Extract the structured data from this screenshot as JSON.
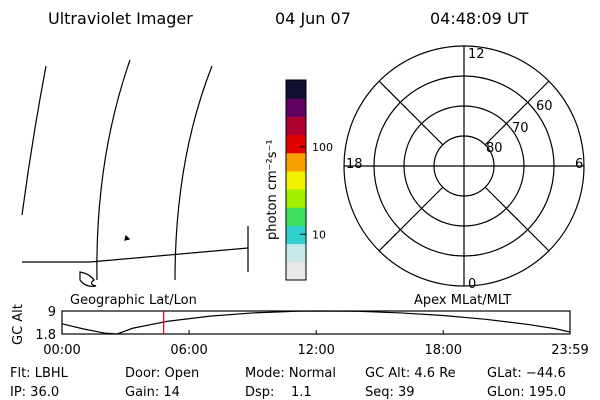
{
  "header": {
    "title": "Ultraviolet Imager",
    "date": "04 Jun 07",
    "time": "04:48:09 UT"
  },
  "colorbar": {
    "label": "photon cm⁻²s⁻¹",
    "lim": [
      3,
      580
    ],
    "ticks": [
      10,
      100
    ],
    "log": true
  },
  "polar": {
    "title": "Apex MLat/MLT",
    "mlt_labels": [
      "12",
      "6",
      "0",
      "18"
    ],
    "lat_labels": [
      "80",
      "70",
      "60"
    ]
  },
  "map": {
    "title": "Geographic Lat/Lon"
  },
  "altitude_plot": {
    "ylabel": "GC Alt",
    "ylim": [
      1.8,
      9.0
    ],
    "yticks": [
      1.8,
      9.0
    ],
    "xlim": [
      0,
      1439
    ],
    "xticks": [
      {
        "value": 0,
        "label": "00:00"
      },
      {
        "value": 360,
        "label": "06:00"
      },
      {
        "value": 720,
        "label": "12:00"
      },
      {
        "value": 1080,
        "label": "18:00"
      },
      {
        "value": 1439,
        "label": "23:59"
      }
    ],
    "x": [
      0,
      60,
      120,
      156,
      200,
      300,
      420,
      540,
      660,
      720,
      840,
      960,
      1080,
      1200,
      1320,
      1400,
      1439
    ],
    "values": [
      5.0,
      3.4,
      2.1,
      1.8,
      3.6,
      5.8,
      7.4,
      8.4,
      8.9,
      9.0,
      8.9,
      8.4,
      7.6,
      6.4,
      4.8,
      3.4,
      2.4
    ],
    "marker": 288,
    "marker_color": "#e00000"
  },
  "status": {
    "rows": [
      [
        "Flt: LBHL",
        "Door: Open",
        "Mode: Normal",
        "GC Alt: 4.6 Re",
        "GLat: −44.6"
      ],
      [
        "IP: 36.0",
        "Gain: 14",
        "Dsp:    1.1",
        "Seq: 39",
        "GLon: 195.0"
      ]
    ]
  }
}
